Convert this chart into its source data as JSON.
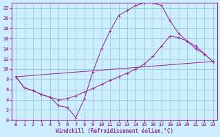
{
  "xlabel": "Windchill (Refroidissement éolien,°C)",
  "bg_color": "#cceeff",
  "line_color": "#993399",
  "grid_color": "#99cccc",
  "xlim": [
    -0.5,
    23.5
  ],
  "ylim": [
    0,
    23
  ],
  "xticks": [
    0,
    1,
    2,
    3,
    4,
    5,
    6,
    7,
    8,
    9,
    10,
    11,
    12,
    13,
    14,
    15,
    16,
    17,
    18,
    19,
    20,
    21,
    22,
    23
  ],
  "yticks": [
    0,
    2,
    4,
    6,
    8,
    10,
    12,
    14,
    16,
    18,
    20,
    22
  ],
  "line1_x": [
    0,
    1,
    2,
    3,
    4,
    5,
    6,
    7,
    8,
    9,
    10,
    11,
    12,
    13,
    14,
    15,
    16,
    17,
    18,
    19,
    20,
    21,
    22,
    23
  ],
  "line1_y": [
    8.5,
    6.3,
    5.8,
    5.0,
    4.5,
    2.8,
    2.5,
    0.5,
    4.2,
    9.5,
    14.0,
    17.5,
    20.5,
    21.5,
    22.5,
    23.0,
    23.0,
    22.5,
    19.5,
    17.0,
    15.5,
    14.5,
    13.0,
    11.5
  ],
  "line2_x": [
    0,
    1,
    2,
    3,
    4,
    5,
    6,
    7,
    8,
    9,
    10,
    11,
    12,
    13,
    14,
    15,
    16,
    17,
    18,
    19,
    20,
    21,
    22,
    23
  ],
  "line2_y": [
    8.5,
    6.3,
    5.8,
    5.0,
    4.5,
    4.0,
    4.2,
    4.8,
    5.5,
    6.2,
    7.0,
    7.8,
    8.5,
    9.2,
    10.0,
    11.0,
    12.5,
    14.5,
    16.5,
    16.2,
    15.5,
    14.0,
    13.0,
    11.5
  ],
  "line3_x": [
    0,
    23
  ],
  "line3_y": [
    8.5,
    11.5
  ]
}
